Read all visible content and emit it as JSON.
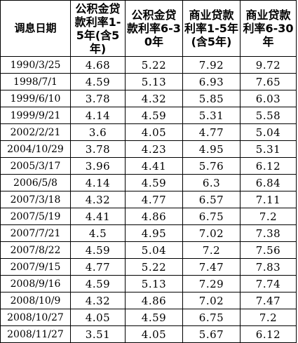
{
  "table": {
    "headers": [
      "调息日期",
      "公积金贷款利率1-5年(含5年)",
      "公积金贷款利率6-30年",
      "商业贷款利率1-5年(含5年)",
      "商业贷款利率6-30年"
    ],
    "rows": [
      [
        "1990/3/25",
        "4.68",
        "5.22",
        "7.92",
        "9.72"
      ],
      [
        "1998/7/1",
        "4.59",
        "5.13",
        "6.93",
        "7.65"
      ],
      [
        "1999/6/10",
        "3.78",
        "4.32",
        "5.85",
        "6.03"
      ],
      [
        "1999/9/21",
        "4.14",
        "4.59",
        "5.31",
        "5.58"
      ],
      [
        "2002/2/21",
        "3.6",
        "4.05",
        "4.77",
        "5.04"
      ],
      [
        "2004/10/29",
        "3.78",
        "4.23",
        "4.95",
        "5.31"
      ],
      [
        "2005/3/17",
        "3.96",
        "4.41",
        "5.76",
        "6.12"
      ],
      [
        "2006/5/8",
        "4.14",
        "4.59",
        "6.3",
        "6.84"
      ],
      [
        "2007/3/18",
        "4.32",
        "4.77",
        "6.57",
        "7.11"
      ],
      [
        "2007/5/19",
        "4.41",
        "4.86",
        "6.75",
        "7.2"
      ],
      [
        "2007/7/21",
        "4.5",
        "4.95",
        "7.02",
        "7.38"
      ],
      [
        "2007/8/22",
        "4.59",
        "5.04",
        "7.2",
        "7.56"
      ],
      [
        "2007/9/15",
        "4.77",
        "5.22",
        "7.47",
        "7.83"
      ],
      [
        "2008/9/16",
        "4.59",
        "5.13",
        "7.29",
        "7.74"
      ],
      [
        "2008/10/9",
        "4.32",
        "4.86",
        "7.02",
        "7.47"
      ],
      [
        "2008/10/27",
        "4.05",
        "4.59",
        "6.75",
        "7.2"
      ],
      [
        "2008/11/27",
        "3.51",
        "4.05",
        "5.67",
        "6.12"
      ]
    ]
  }
}
